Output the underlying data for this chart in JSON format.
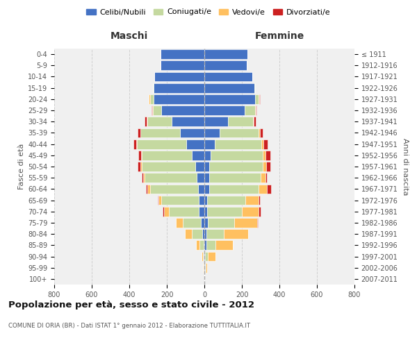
{
  "age_groups": [
    "0-4",
    "5-9",
    "10-14",
    "15-19",
    "20-24",
    "25-29",
    "30-34",
    "35-39",
    "40-44",
    "45-49",
    "50-54",
    "55-59",
    "60-64",
    "65-69",
    "70-74",
    "75-79",
    "80-84",
    "85-89",
    "90-94",
    "95-99",
    "100+"
  ],
  "birth_years": [
    "2007-2011",
    "2002-2006",
    "1997-2001",
    "1992-1996",
    "1987-1991",
    "1982-1986",
    "1977-1981",
    "1972-1976",
    "1967-1971",
    "1962-1966",
    "1957-1961",
    "1952-1956",
    "1947-1951",
    "1942-1946",
    "1937-1941",
    "1932-1936",
    "1927-1931",
    "1922-1926",
    "1917-1921",
    "1912-1916",
    "≤ 1911"
  ],
  "maschi": {
    "celibi": [
      235,
      235,
      265,
      270,
      270,
      230,
      175,
      130,
      95,
      65,
      50,
      40,
      35,
      30,
      28,
      18,
      10,
      5,
      3,
      2,
      0
    ],
    "coniugati": [
      0,
      0,
      2,
      5,
      20,
      45,
      130,
      210,
      265,
      270,
      285,
      280,
      255,
      200,
      160,
      95,
      55,
      20,
      5,
      2,
      0
    ],
    "vedovi": [
      0,
      0,
      0,
      0,
      5,
      2,
      2,
      2,
      2,
      3,
      5,
      5,
      12,
      15,
      25,
      40,
      40,
      20,
      5,
      2,
      0
    ],
    "divorziati": [
      0,
      0,
      0,
      0,
      2,
      5,
      10,
      12,
      15,
      15,
      15,
      10,
      8,
      5,
      10,
      0,
      0,
      0,
      0,
      0,
      0
    ]
  },
  "femmine": {
    "nubili": [
      230,
      225,
      255,
      265,
      270,
      215,
      125,
      80,
      55,
      35,
      25,
      25,
      25,
      15,
      15,
      20,
      12,
      10,
      3,
      2,
      0
    ],
    "coniugate": [
      0,
      0,
      2,
      5,
      20,
      55,
      135,
      210,
      250,
      275,
      285,
      275,
      265,
      205,
      185,
      140,
      90,
      50,
      15,
      5,
      0
    ],
    "vedove": [
      0,
      0,
      0,
      0,
      3,
      3,
      4,
      5,
      8,
      15,
      20,
      25,
      45,
      70,
      90,
      120,
      130,
      90,
      40,
      8,
      1
    ],
    "divorziate": [
      0,
      0,
      0,
      0,
      2,
      5,
      10,
      15,
      25,
      25,
      20,
      10,
      20,
      5,
      10,
      5,
      2,
      2,
      0,
      0,
      0
    ]
  },
  "colors": {
    "celibi": "#4472c4",
    "coniugati": "#c5d9a0",
    "vedovi": "#ffc060",
    "divorziati": "#cc2020"
  },
  "title": "Popolazione per età, sesso e stato civile - 2012",
  "subtitle": "COMUNE DI ORIA (BR) - Dati ISTAT 1° gennaio 2012 - Elaborazione TUTTITALIA.IT",
  "xlabel_left": "Maschi",
  "xlabel_right": "Femmine",
  "ylabel_left": "Fasce di età",
  "ylabel_right": "Anni di nascita",
  "xlim": 800,
  "legend_labels": [
    "Celibi/Nubili",
    "Coniugati/e",
    "Vedovi/e",
    "Divorziati/e"
  ],
  "background_color": "#ffffff",
  "grid_color": "#cccccc"
}
